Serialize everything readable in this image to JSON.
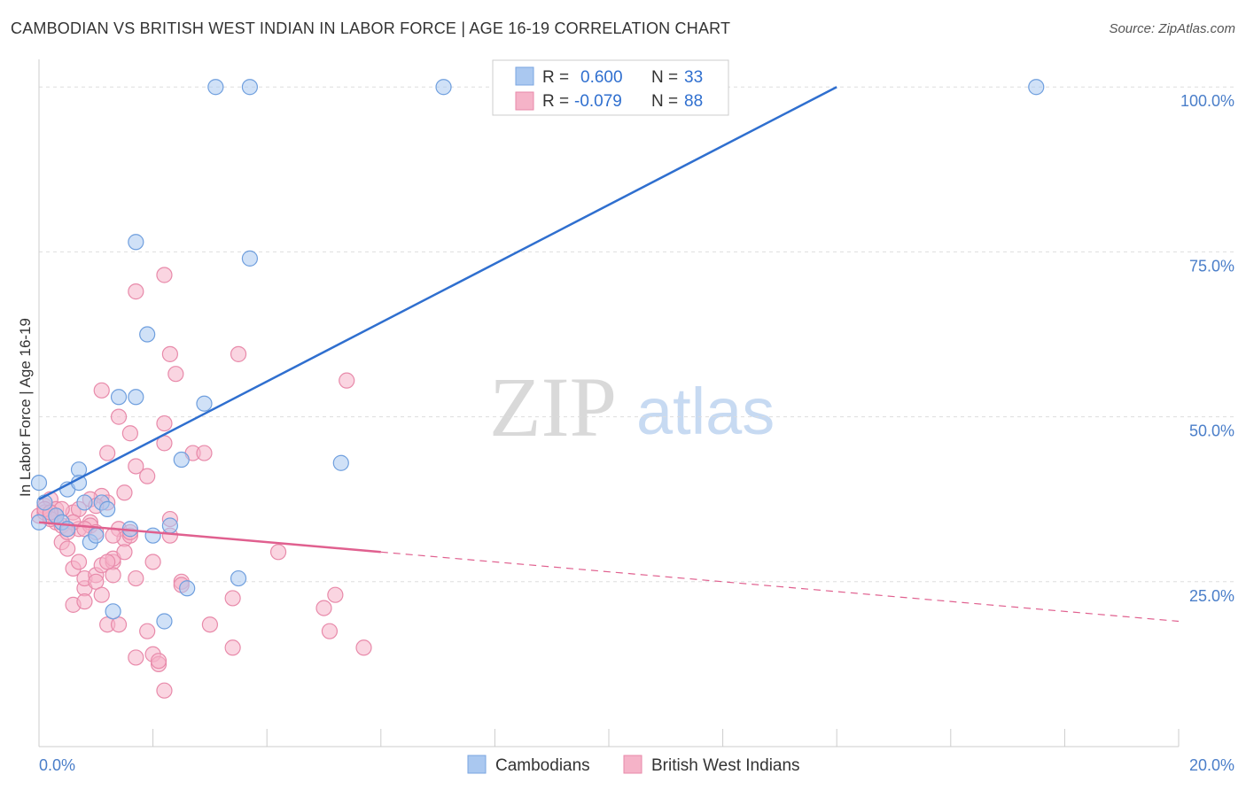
{
  "title": "CAMBODIAN VS BRITISH WEST INDIAN IN LABOR FORCE | AGE 16-19 CORRELATION CHART",
  "source": "Source: ZipAtlas.com",
  "watermark": {
    "zip": "ZIP",
    "atlas": "atlas"
  },
  "colors": {
    "blue": "#2f6fcf",
    "blue_fill": "#aac8f0",
    "pink": "#e0608f",
    "pink_fill": "#f5b3c8"
  },
  "chart_data": {
    "type": "scatter",
    "xlabel": "",
    "ylabel": "In Labor Force | Age 16-19",
    "xlim": [
      0,
      20
    ],
    "ylim": [
      0,
      105
    ],
    "x_tick_labels": {
      "left": "0.0%",
      "right": "20.0%"
    },
    "y_ticks": [
      {
        "value": 25,
        "label": "25.0%"
      },
      {
        "value": 50,
        "label": "50.0%"
      },
      {
        "value": 75,
        "label": "75.0%"
      },
      {
        "value": 100,
        "label": "100.0%"
      }
    ],
    "legend": {
      "rows": [
        {
          "r_label": "R =",
          "r_value": "0.600",
          "n_label": "N =",
          "n_value": "33"
        },
        {
          "r_label": "R =",
          "r_value": "-0.079",
          "n_label": "N =",
          "n_value": "88"
        }
      ]
    },
    "series": [
      {
        "name": "Cambodians",
        "trend": {
          "x0": 0.0,
          "y0": 37.5,
          "x1": 14.0,
          "y1": 100.0,
          "solid_to": 14.0
        },
        "points": [
          [
            0.0,
            34.0
          ],
          [
            0.0,
            40.0
          ],
          [
            0.1,
            37.0
          ],
          [
            0.3,
            35.0
          ],
          [
            0.4,
            34.0
          ],
          [
            0.5,
            39.0
          ],
          [
            0.7,
            42.0
          ],
          [
            0.7,
            40.0
          ],
          [
            0.8,
            37.0
          ],
          [
            0.9,
            31.0
          ],
          [
            1.0,
            32.0
          ],
          [
            1.1,
            37.0
          ],
          [
            1.2,
            36.0
          ],
          [
            1.3,
            20.5
          ],
          [
            1.4,
            53.0
          ],
          [
            1.6,
            33.0
          ],
          [
            1.7,
            76.5
          ],
          [
            1.7,
            53.0
          ],
          [
            1.9,
            62.5
          ],
          [
            2.0,
            32.0
          ],
          [
            2.2,
            19.0
          ],
          [
            2.3,
            33.5
          ],
          [
            2.5,
            43.5
          ],
          [
            2.6,
            24.0
          ],
          [
            2.9,
            52.0
          ],
          [
            3.1,
            100.0
          ],
          [
            3.5,
            25.5
          ],
          [
            3.7,
            100.0
          ],
          [
            3.7,
            74.0
          ],
          [
            5.3,
            43.0
          ],
          [
            7.1,
            100.0
          ],
          [
            17.5,
            100.0
          ],
          [
            0.5,
            33.0
          ]
        ]
      },
      {
        "name": "British West Indians",
        "trend": {
          "x0": 0.0,
          "y0": 34.0,
          "x1": 20.0,
          "y1": 19.0,
          "solid_to": 6.0
        },
        "points": [
          [
            0.0,
            35.0
          ],
          [
            0.1,
            36.5
          ],
          [
            0.1,
            35.5
          ],
          [
            0.2,
            35.0
          ],
          [
            0.2,
            37.5
          ],
          [
            0.3,
            36.0
          ],
          [
            0.3,
            34.0
          ],
          [
            0.4,
            33.5
          ],
          [
            0.4,
            31.0
          ],
          [
            0.5,
            33.0
          ],
          [
            0.5,
            30.0
          ],
          [
            0.6,
            35.5
          ],
          [
            0.6,
            21.5
          ],
          [
            0.6,
            27.0
          ],
          [
            0.7,
            33.0
          ],
          [
            0.7,
            28.0
          ],
          [
            0.7,
            36.0
          ],
          [
            0.8,
            24.0
          ],
          [
            0.8,
            25.5
          ],
          [
            0.8,
            22.0
          ],
          [
            0.9,
            34.0
          ],
          [
            0.9,
            33.5
          ],
          [
            1.0,
            26.0
          ],
          [
            1.0,
            25.0
          ],
          [
            1.0,
            32.5
          ],
          [
            1.1,
            27.5
          ],
          [
            1.1,
            54.0
          ],
          [
            1.1,
            23.0
          ],
          [
            1.1,
            38.0
          ],
          [
            1.2,
            37.0
          ],
          [
            1.2,
            18.5
          ],
          [
            1.2,
            44.5
          ],
          [
            1.3,
            28.0
          ],
          [
            1.3,
            26.0
          ],
          [
            1.3,
            28.5
          ],
          [
            1.4,
            33.0
          ],
          [
            1.4,
            18.5
          ],
          [
            1.4,
            50.0
          ],
          [
            1.5,
            31.5
          ],
          [
            1.5,
            38.5
          ],
          [
            1.5,
            29.5
          ],
          [
            1.6,
            32.0
          ],
          [
            1.6,
            47.5
          ],
          [
            1.7,
            69.0
          ],
          [
            1.7,
            13.5
          ],
          [
            1.7,
            25.5
          ],
          [
            1.7,
            42.5
          ],
          [
            1.9,
            17.5
          ],
          [
            1.9,
            41.0
          ],
          [
            2.0,
            14.0
          ],
          [
            2.0,
            28.0
          ],
          [
            2.1,
            12.5
          ],
          [
            2.1,
            13.0
          ],
          [
            2.2,
            46.0
          ],
          [
            2.2,
            49.0
          ],
          [
            2.2,
            8.5
          ],
          [
            2.2,
            71.5
          ],
          [
            2.3,
            59.5
          ],
          [
            2.3,
            34.5
          ],
          [
            2.4,
            56.5
          ],
          [
            2.5,
            25.0
          ],
          [
            2.5,
            24.5
          ],
          [
            2.7,
            44.5
          ],
          [
            2.9,
            44.5
          ],
          [
            3.0,
            18.5
          ],
          [
            3.4,
            22.5
          ],
          [
            3.4,
            15.0
          ],
          [
            3.5,
            59.5
          ],
          [
            4.2,
            29.5
          ],
          [
            5.0,
            21.0
          ],
          [
            5.1,
            17.5
          ],
          [
            5.2,
            23.0
          ],
          [
            5.4,
            55.5
          ],
          [
            5.7,
            15.0
          ],
          [
            0.3,
            35.0
          ],
          [
            0.4,
            36.0
          ],
          [
            0.2,
            34.5
          ],
          [
            0.6,
            34.0
          ],
          [
            0.9,
            37.5
          ],
          [
            1.0,
            36.5
          ],
          [
            0.5,
            32.5
          ],
          [
            0.8,
            33.0
          ],
          [
            1.3,
            32.0
          ],
          [
            1.6,
            32.5
          ],
          [
            2.3,
            32.0
          ],
          [
            0.1,
            36.0
          ],
          [
            0.2,
            35.5
          ],
          [
            1.2,
            28.0
          ]
        ]
      }
    ]
  }
}
